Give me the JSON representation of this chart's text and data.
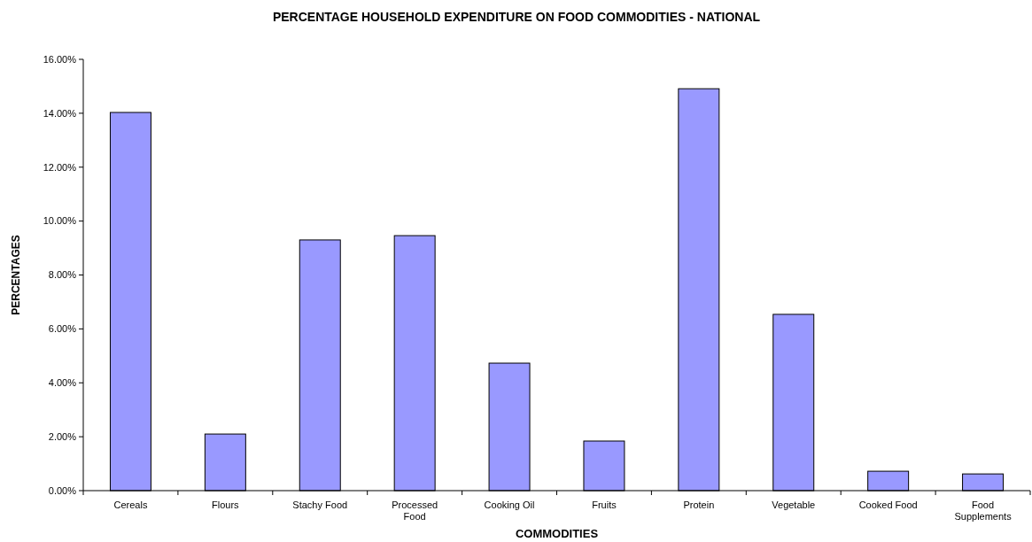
{
  "chart_data": {
    "type": "bar",
    "title": "PERCENTAGE  HOUSEHOLD EXPENDITURE ON  FOOD COMMODITIES - NATIONAL",
    "xlabel": "COMMODITIES",
    "ylabel": "PERCENTAGES",
    "categories": [
      "Cereals",
      "Flours",
      "Stachy Food",
      "Processed Food",
      "Cooking Oil",
      "Fruits",
      "Protein",
      "Vegetable",
      "Cooked Food",
      "Food Supplements"
    ],
    "values": [
      14.03,
      2.1,
      9.3,
      9.46,
      4.73,
      1.84,
      14.91,
      6.54,
      0.72,
      0.62
    ],
    "color": "#9999ff",
    "ylim": [
      0,
      16
    ],
    "yticks": [
      {
        "value": 0,
        "label": "0.00%"
      },
      {
        "value": 2,
        "label": "2.00%"
      },
      {
        "value": 4,
        "label": "4.00%"
      },
      {
        "value": 6,
        "label": "6.00%"
      },
      {
        "value": 8,
        "label": "8.00%"
      },
      {
        "value": 10,
        "label": "10.00%"
      },
      {
        "value": 12,
        "label": "12.00%"
      },
      {
        "value": 14,
        "label": "14.00%"
      },
      {
        "value": 16,
        "label": "16.00%"
      }
    ],
    "grid": false
  }
}
